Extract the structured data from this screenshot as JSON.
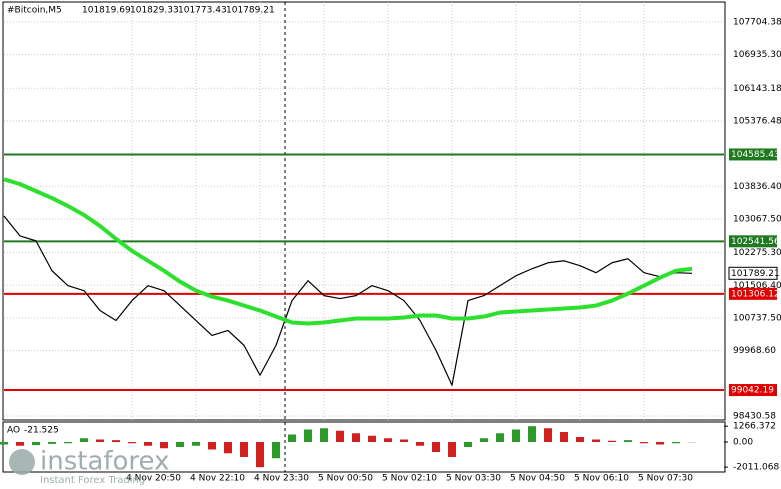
{
  "chart_data": {
    "type": "line",
    "header": {
      "symbol": "#Bitcoin,M5",
      "ohlc": [
        101819.69,
        101829.33,
        101773.43,
        101789.21
      ]
    },
    "categories": [
      null,
      null,
      null,
      null,
      null,
      null,
      null,
      null,
      "4 Nov 20:50",
      null,
      null,
      null,
      "4 Nov 22:10",
      null,
      null,
      null,
      "4 Nov 23:30",
      null,
      null,
      null,
      "5 Nov 00:50",
      null,
      null,
      null,
      "5 Nov 02:10",
      null,
      null,
      null,
      "5 Nov 03:30",
      null,
      null,
      null,
      "5 Nov 04:50",
      null,
      null,
      null,
      "5 Nov 06:10",
      null,
      null,
      null,
      "5 Nov 07:30",
      null,
      null,
      null
    ],
    "series": [
      {
        "color": "#000000",
        "values": [
          103137,
          102669,
          102552,
          101849,
          101498,
          101381,
          100913,
          100678,
          101147,
          101498,
          101381,
          101030,
          100678,
          100327,
          100444,
          100093,
          99390,
          100093,
          101147,
          101615,
          101264,
          101194,
          101264,
          101498,
          101381,
          101147,
          100678,
          99976,
          99156,
          101147,
          101264,
          101498,
          101732,
          101896,
          102037,
          102084,
          101967,
          101803,
          102037,
          102131,
          101803,
          101709,
          101803,
          101789.21
        ]
      },
      {
        "color": "#2ee02e",
        "values": [
          104004,
          103887,
          103723,
          103559,
          103372,
          103161,
          102903,
          102599,
          102318,
          102084,
          101850,
          101592,
          101381,
          101241,
          101147,
          101030,
          100913,
          100772,
          100632,
          100608,
          100632,
          100679,
          100725,
          100725,
          100725,
          100749,
          100796,
          100796,
          100725,
          100725,
          100772,
          100866,
          100889,
          100913,
          100936,
          100960,
          100983,
          101030,
          101147,
          101311,
          101498,
          101686,
          101850,
          101896
        ]
      }
    ],
    "levels": [
      {
        "value": 104585.43,
        "color": "#1f7a1f"
      },
      {
        "value": 102541.56,
        "color": "#1f7a1f"
      },
      {
        "value": 101306.12,
        "color": "#e00000"
      },
      {
        "value": 99042.19,
        "color": "#e00000"
      }
    ],
    "last_price": 101789.21,
    "ylim": [
      98337,
      108173
    ],
    "yticks": [
      107704.38,
      {
        "value": 106935.3,
        "label": "106935.30"
      },
      106143.18,
      105376.48,
      {
        "value": 103836.4,
        "label": "103836.40"
      },
      {
        "value": 103067.5,
        "label": "103067.50"
      },
      {
        "value": 102275.3,
        "label": "102275.30"
      },
      {
        "value": 101506.4,
        "label": "101506.40"
      },
      {
        "value": 100737.5,
        "label": "100737.50"
      },
      {
        "value": 99968.6,
        "label": "99968.60"
      },
      98430.58
    ],
    "grid": true,
    "indicator": {
      "type": "bar",
      "name": "AO",
      "up_color": "#2a9a2a",
      "down_color": "#d02020",
      "values": [
        -200,
        -300,
        -250,
        -150,
        -100,
        300,
        200,
        150,
        -100,
        -300,
        -500,
        -400,
        -300,
        -600,
        -900,
        -1200,
        -2011.068,
        -1300,
        600,
        1000,
        1100,
        900,
        700,
        500,
        300,
        200,
        -300,
        -800,
        -1200,
        -400,
        300,
        700,
        1000,
        1266.372,
        1100,
        800,
        400,
        200,
        100,
        150,
        -100,
        -200,
        -100,
        -21.525
      ],
      "ylim": [
        -2400,
        1600
      ],
      "yticks": [
        1266.372,
        {
          "value": 0,
          "label": "0.00"
        },
        -2011.068
      ]
    },
    "watermark": {
      "brand": "instaforex",
      "tagline": "Instant Forex Trading"
    }
  }
}
